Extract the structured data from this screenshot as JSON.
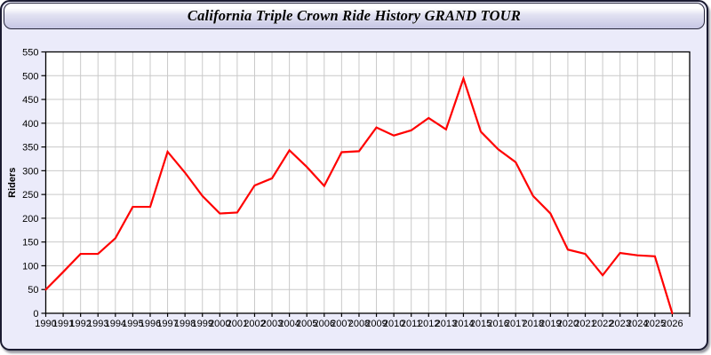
{
  "window": {
    "title": "California Triple Crown Ride History GRAND TOUR"
  },
  "colors": {
    "line": "#ff0000",
    "plot_background": "#ffffff",
    "grid": "#c9c9c9",
    "panel_background": "#ebebfa",
    "axis": "#000000",
    "frame_border": "#1a1a30"
  },
  "chart_data": {
    "type": "line",
    "title": "California Triple Crown Ride History GRAND TOUR",
    "xlabel": "",
    "ylabel": "Riders",
    "legend_position": "none",
    "grid": true,
    "ylim": [
      0,
      550
    ],
    "ytick_step": 50,
    "yticks": [
      0,
      50,
      100,
      150,
      200,
      250,
      300,
      350,
      400,
      450,
      500,
      550
    ],
    "x": [
      1990,
      1991,
      1992,
      1993,
      1994,
      1995,
      1996,
      1997,
      1998,
      1999,
      2000,
      2001,
      2002,
      2003,
      2004,
      2005,
      2006,
      2007,
      2008,
      2009,
      2010,
      2011,
      2012,
      2013,
      2014,
      2015,
      2016,
      2017,
      2018,
      2019,
      2020,
      2021,
      2022,
      2023,
      2024,
      2025,
      2026
    ],
    "series": [
      {
        "name": "Riders",
        "color": "#ff0000",
        "values": [
          50,
          87,
          125,
          125,
          158,
          224,
          224,
          340,
          296,
          247,
          210,
          212,
          269,
          284,
          343,
          308,
          268,
          339,
          341,
          391,
          374,
          385,
          411,
          387,
          494,
          382,
          345,
          318,
          247,
          210,
          134,
          125,
          80,
          127,
          122,
          120,
          0
        ]
      }
    ]
  }
}
